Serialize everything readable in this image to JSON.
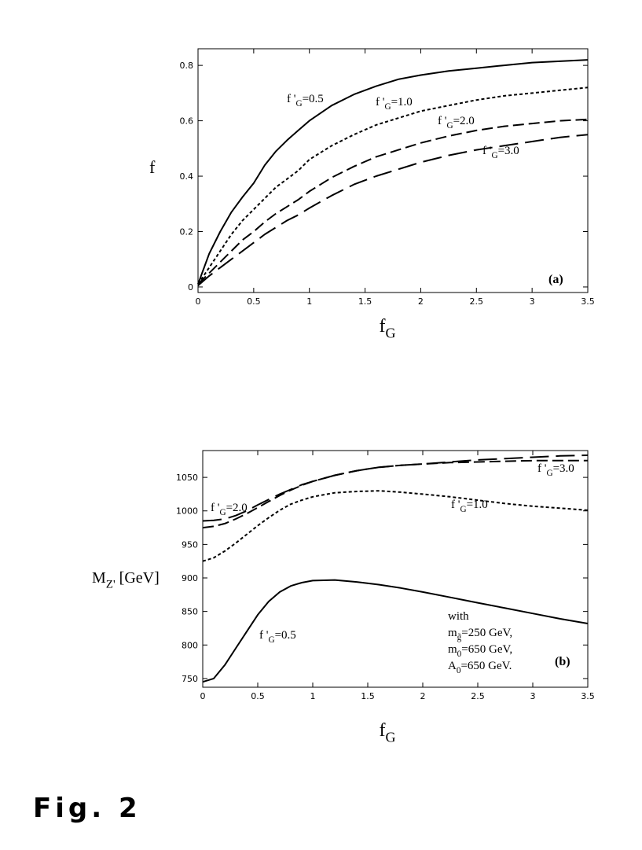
{
  "caption": "Fig. 2",
  "chart_data": [
    {
      "type": "line",
      "panel_label": "(a)",
      "ylabel": "f",
      "xlabel": {
        "base": "f",
        "sub": "G"
      },
      "xlim": [
        0,
        3.5
      ],
      "ylim": [
        -0.02,
        0.86
      ],
      "xticks": [
        0,
        0.5,
        1,
        1.5,
        2,
        2.5,
        3,
        3.5
      ],
      "yticks": [
        0,
        0.2,
        0.4,
        0.6,
        0.8
      ],
      "x": [
        0,
        0.1,
        0.2,
        0.3,
        0.4,
        0.5,
        0.6,
        0.7,
        0.8,
        0.9,
        1.0,
        1.2,
        1.4,
        1.6,
        1.8,
        2.0,
        2.25,
        2.5,
        2.75,
        3.0,
        3.25,
        3.5
      ],
      "series": [
        {
          "label": {
            "base": "f '",
            "sub": "G",
            "tail": "=0.5"
          },
          "dash": "solid",
          "values": [
            0.01,
            0.12,
            0.2,
            0.27,
            0.325,
            0.375,
            0.44,
            0.49,
            0.53,
            0.565,
            0.6,
            0.655,
            0.695,
            0.725,
            0.75,
            0.765,
            0.78,
            0.79,
            0.8,
            0.81,
            0.815,
            0.82
          ]
        },
        {
          "label": {
            "base": "f '",
            "sub": "G",
            "tail": "=1.0"
          },
          "dash": "short",
          "values": [
            0.01,
            0.07,
            0.13,
            0.19,
            0.24,
            0.28,
            0.32,
            0.36,
            0.39,
            0.42,
            0.46,
            0.51,
            0.55,
            0.585,
            0.61,
            0.635,
            0.655,
            0.675,
            0.69,
            0.7,
            0.71,
            0.72
          ]
        },
        {
          "label": {
            "base": "f '",
            "sub": "G",
            "tail": "=2.0"
          },
          "dash": "long",
          "values": [
            0.01,
            0.05,
            0.09,
            0.13,
            0.17,
            0.2,
            0.235,
            0.265,
            0.29,
            0.315,
            0.345,
            0.395,
            0.435,
            0.47,
            0.495,
            0.52,
            0.545,
            0.565,
            0.58,
            0.59,
            0.6,
            0.605
          ]
        },
        {
          "label": {
            "base": "f '",
            "sub": "G",
            "tail": "=3.0"
          },
          "dash": "verylong",
          "values": [
            0.005,
            0.04,
            0.07,
            0.1,
            0.13,
            0.16,
            0.19,
            0.215,
            0.24,
            0.26,
            0.285,
            0.33,
            0.37,
            0.4,
            0.425,
            0.45,
            0.475,
            0.495,
            0.51,
            0.525,
            0.54,
            0.55
          ]
        }
      ]
    },
    {
      "type": "line",
      "panel_label": "(b)",
      "ylabel": {
        "base": "M",
        "sub": "Z'",
        "tail": " [GeV]"
      },
      "xlabel": {
        "base": "f",
        "sub": "G"
      },
      "xlim": [
        0,
        3.5
      ],
      "ylim": [
        737,
        1090
      ],
      "xticks": [
        0,
        0.5,
        1,
        1.5,
        2,
        2.5,
        3,
        3.5
      ],
      "yticks": [
        750,
        800,
        850,
        900,
        950,
        1000,
        1050
      ],
      "annotation": [
        {
          "base": "with"
        },
        {
          "base": "m",
          "sub": "g̃",
          "tail": "=250 GeV,"
        },
        {
          "base": "m",
          "sub": "0",
          "tail": "=650 GeV,"
        },
        {
          "base": "A",
          "sub": "0",
          "tail": "=650 GeV."
        }
      ],
      "x": [
        0,
        0.1,
        0.2,
        0.3,
        0.4,
        0.5,
        0.6,
        0.7,
        0.8,
        0.9,
        1.0,
        1.2,
        1.4,
        1.6,
        1.8,
        2.0,
        2.25,
        2.5,
        2.75,
        3.0,
        3.25,
        3.5
      ],
      "series": [
        {
          "label": {
            "base": "f '",
            "sub": "G",
            "tail": "=0.5"
          },
          "dash": "solid",
          "values": [
            745,
            750,
            770,
            795,
            820,
            845,
            865,
            879,
            888,
            893,
            896,
            897,
            894,
            890,
            885,
            879,
            871,
            863,
            855,
            847,
            839,
            832
          ]
        },
        {
          "label": {
            "base": "f '",
            "sub": "G",
            "tail": "=1.0"
          },
          "dash": "short",
          "values": [
            925,
            930,
            940,
            952,
            965,
            978,
            990,
            1001,
            1010,
            1016,
            1021,
            1027,
            1029,
            1030,
            1028,
            1025,
            1021,
            1016,
            1011,
            1007,
            1004,
            1001
          ]
        },
        {
          "label": {
            "base": "f '",
            "sub": "G",
            "tail": "=2.0"
          },
          "dash": "long",
          "values": [
            975,
            977,
            981,
            988,
            996,
            1005,
            1014,
            1023,
            1031,
            1038,
            1044,
            1053,
            1060,
            1065,
            1068,
            1070,
            1072,
            1073,
            1074,
            1075,
            1075,
            1075
          ]
        },
        {
          "label": {
            "base": "f '",
            "sub": "G",
            "tail": "=3.0"
          },
          "dash": "verylong",
          "values": [
            985,
            986,
            988,
            993,
            1000,
            1009,
            1017,
            1025,
            1032,
            1039,
            1044,
            1053,
            1060,
            1065,
            1068,
            1070,
            1073,
            1076,
            1078,
            1080,
            1082,
            1083
          ]
        }
      ]
    }
  ]
}
